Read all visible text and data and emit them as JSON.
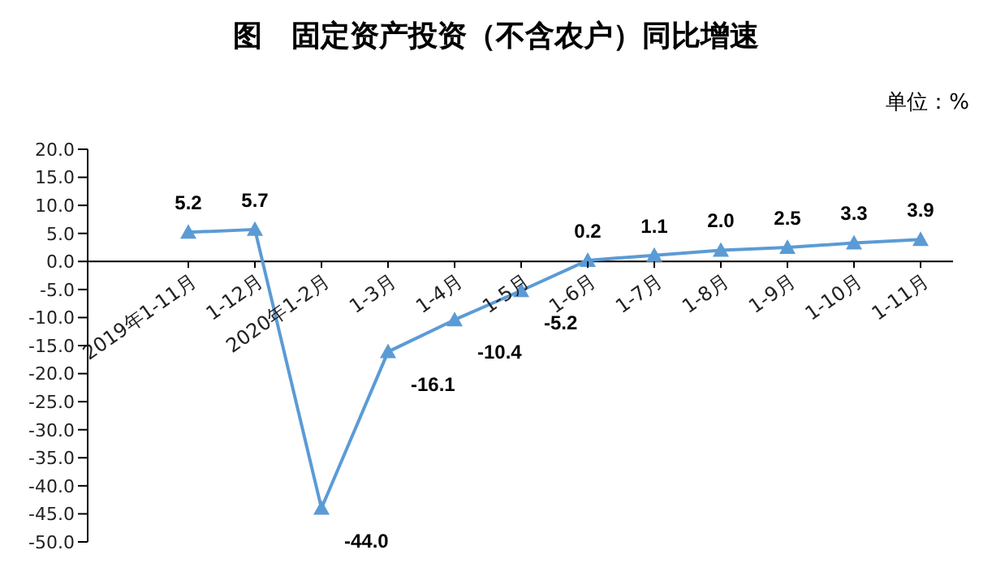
{
  "chart_data": {
    "type": "line",
    "title": "图　固定资产投资（不含农户）同比增速",
    "ylabel": "单位：%",
    "categories": [
      "2019年1-11月",
      "1-12月",
      "2020年1-2月",
      "1-3月",
      "1-4月",
      "1-5月",
      "1-6月",
      "1-7月",
      "1-8月",
      "1-9月",
      "1-10月",
      "1-11月"
    ],
    "series": [
      {
        "color": "#5b9bd5",
        "values": [
          5.2,
          5.7,
          -44.0,
          -16.1,
          -10.4,
          -5.2,
          0.2,
          1.1,
          2.0,
          2.5,
          3.3,
          3.9
        ],
        "value_labels": [
          "5.2",
          "5.7",
          "-44.0",
          "-16.1",
          "-10.4",
          "-5.2",
          "0.2",
          "1.1",
          "2.0",
          "2.5",
          "3.3",
          "3.9"
        ]
      }
    ],
    "ylim": [
      -50,
      20
    ],
    "yticks": [
      {
        "value": 20,
        "label": "20.0"
      },
      {
        "value": 15,
        "label": "15.0"
      },
      {
        "value": 10,
        "label": "10.0"
      },
      {
        "value": 5,
        "label": "5.0"
      },
      {
        "value": 0,
        "label": "0.0"
      },
      {
        "value": -5,
        "label": "-5.0"
      },
      {
        "value": -10,
        "label": "-10.0"
      },
      {
        "value": -15,
        "label": "-15.0"
      },
      {
        "value": -20,
        "label": "-20.0"
      },
      {
        "value": -25,
        "label": "-25.0"
      },
      {
        "value": -30,
        "label": "-30.0"
      },
      {
        "value": -35,
        "label": "-35.0"
      },
      {
        "value": -40,
        "label": "-40.0"
      },
      {
        "value": -45,
        "label": "-45.0"
      },
      {
        "value": -50,
        "label": "-50.0"
      }
    ],
    "marker": "triangle",
    "line_style": "solid",
    "grid": false,
    "legend": false
  }
}
